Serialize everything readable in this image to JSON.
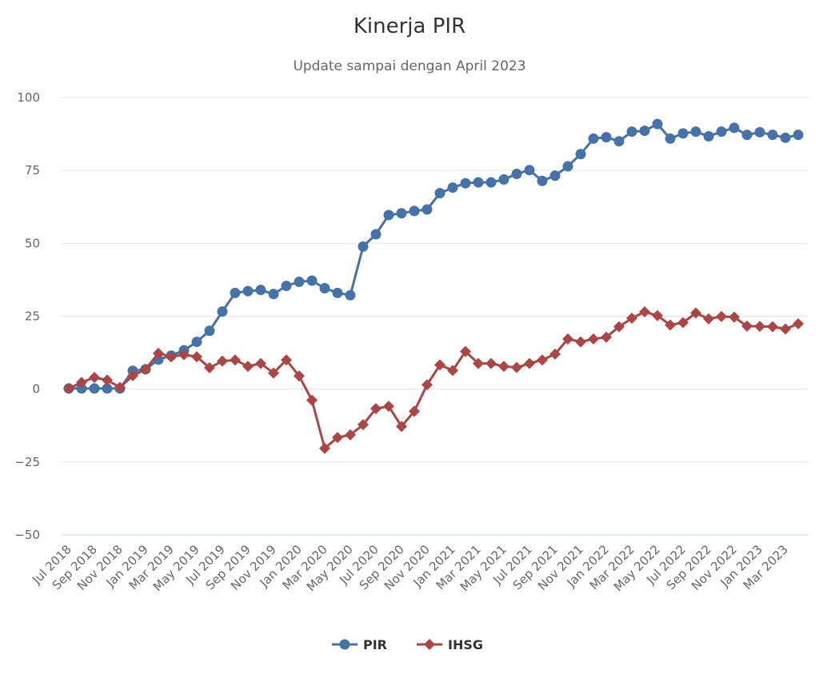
{
  "chart_data": {
    "type": "line",
    "title": "Kinerja PIR",
    "subtitle": "Update sampai dengan April 2023",
    "xlabel": "",
    "ylabel": "",
    "ylim": [
      -50,
      100
    ],
    "yticks": [
      -50,
      -25,
      0,
      25,
      50,
      75,
      100
    ],
    "grid": true,
    "legend_position": "bottom-center",
    "x": [
      "Jul 2018",
      "Aug 2018",
      "Sep 2018",
      "Oct 2018",
      "Nov 2018",
      "Dec 2018",
      "Jan 2019",
      "Feb 2019",
      "Mar 2019",
      "Apr 2019",
      "May 2019",
      "Jun 2019",
      "Jul 2019",
      "Aug 2019",
      "Sep 2019",
      "Oct 2019",
      "Nov 2019",
      "Dec 2019",
      "Jan 2020",
      "Feb 2020",
      "Mar 2020",
      "Apr 2020",
      "May 2020",
      "Jun 2020",
      "Jul 2020",
      "Aug 2020",
      "Sep 2020",
      "Oct 2020",
      "Nov 2020",
      "Dec 2020",
      "Jan 2021",
      "Feb 2021",
      "Mar 2021",
      "Apr 2021",
      "May 2021",
      "Jun 2021",
      "Jul 2021",
      "Aug 2021",
      "Sep 2021",
      "Oct 2021",
      "Nov 2021",
      "Dec 2021",
      "Jan 2022",
      "Feb 2022",
      "Mar 2022",
      "Apr 2022",
      "May 2022",
      "Jun 2022",
      "Jul 2022",
      "Aug 2022",
      "Sep 2022",
      "Oct 2022",
      "Nov 2022",
      "Dec 2022",
      "Jan 2023",
      "Feb 2023",
      "Mar 2023",
      "Apr 2023"
    ],
    "x_tick_labels": [
      "Jul 2018",
      "Sep 2018",
      "Nov 2018",
      "Jan 2019",
      "Mar 2019",
      "May 2019",
      "Jul 2019",
      "Sep 2019",
      "Nov 2019",
      "Jan 2020",
      "Mar 2020",
      "May 2020",
      "Jul 2020",
      "Sep 2020",
      "Nov 2020",
      "Jan 2021",
      "Mar 2021",
      "May 2021",
      "Jul 2021",
      "Sep 2021",
      "Nov 2021",
      "Jan 2022",
      "Mar 2022",
      "May 2022",
      "Jul 2022",
      "Sep 2022",
      "Nov 2022",
      "Jan 2023",
      "Mar 2023"
    ],
    "series": [
      {
        "name": "PIR",
        "color": "#4572a7",
        "marker": "circle",
        "values": [
          0.2,
          0.2,
          0.2,
          0.2,
          0.2,
          6.3,
          6.8,
          10.1,
          11.5,
          13.3,
          16.2,
          20.0,
          26.6,
          33.0,
          33.6,
          34.0,
          32.6,
          35.4,
          36.8,
          37.2,
          34.6,
          33.0,
          32.2,
          48.9,
          53.1,
          59.7,
          60.3,
          61.1,
          61.6,
          67.2,
          69.1,
          70.6,
          70.9,
          70.9,
          71.9,
          73.8,
          75.1,
          71.4,
          73.2,
          76.4,
          80.6,
          85.9,
          86.4,
          85.0,
          88.3,
          88.6,
          90.9,
          85.9,
          87.7,
          88.3,
          86.7,
          88.3,
          89.6,
          87.2,
          88.1,
          87.2,
          86.2,
          87.2
        ]
      },
      {
        "name": "IHSG",
        "color": "#aa4643",
        "marker": "diamond",
        "values": [
          0.2,
          2.3,
          4.0,
          3.1,
          0.6,
          4.6,
          6.8,
          12.3,
          11.1,
          11.8,
          11.1,
          7.3,
          9.6,
          10.0,
          7.8,
          8.8,
          5.5,
          10.0,
          4.5,
          -3.8,
          -20.3,
          -16.6,
          -15.7,
          -12.2,
          -6.7,
          -5.9,
          -12.8,
          -7.6,
          1.5,
          8.3,
          6.4,
          12.9,
          8.8,
          8.8,
          7.8,
          7.4,
          8.8,
          10.0,
          12.0,
          17.2,
          16.2,
          17.2,
          17.8,
          21.4,
          24.3,
          26.5,
          25.2,
          22.0,
          22.8,
          26.1,
          24.1,
          24.9,
          24.7,
          21.6,
          21.5,
          21.4,
          20.6,
          22.4
        ]
      }
    ]
  }
}
